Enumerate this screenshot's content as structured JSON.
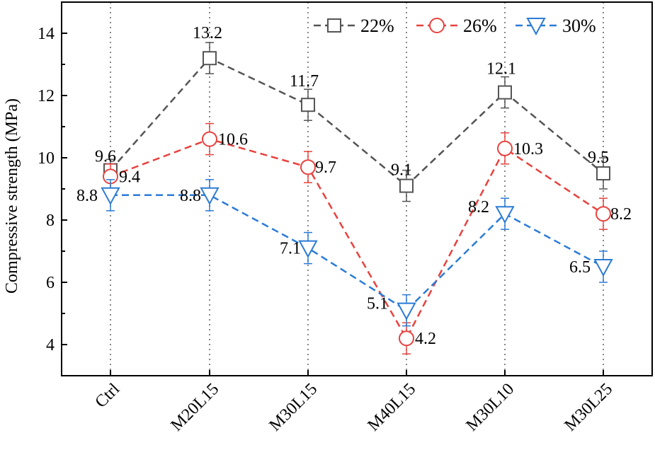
{
  "chart_data": {
    "type": "line",
    "categories": [
      "Ctrl",
      "M20L15",
      "M30L15",
      "M40L15",
      "M30L10",
      "M30L25"
    ],
    "ylabel": "Compressive strength (MPa)",
    "xlabel": "",
    "ylim": [
      3,
      15
    ],
    "yticks": [
      "4",
      "6",
      "8",
      "10",
      "12",
      "14"
    ],
    "grid": "vertical dotted lines at categories",
    "legend_position": "top-right",
    "series": [
      {
        "name": "22%",
        "color": "#555555",
        "marker": "square",
        "values": [
          9.6,
          13.2,
          11.7,
          9.1,
          12.1,
          9.5
        ],
        "labels": [
          "9.6",
          "13.2",
          "11.7",
          "9.1",
          "12.1",
          "9.5"
        ],
        "errors": [
          0.35,
          0.5,
          0.5,
          0.5,
          0.5,
          0.5
        ]
      },
      {
        "name": "26%",
        "color": "#e8423f",
        "marker": "circle",
        "values": [
          9.4,
          10.6,
          9.7,
          4.2,
          10.3,
          8.2
        ],
        "labels": [
          "9.4",
          "10.6",
          "9.7",
          "4.2",
          "10.3",
          "8.2"
        ],
        "errors": [
          0.4,
          0.5,
          0.5,
          0.5,
          0.5,
          0.5
        ]
      },
      {
        "name": "30%",
        "color": "#2b7bd6",
        "marker": "triangle-down",
        "values": [
          8.8,
          8.8,
          7.1,
          5.1,
          8.2,
          6.5
        ],
        "labels": [
          "8.8",
          "8.8",
          "7.1",
          "5.1",
          "8.2",
          "6.5"
        ],
        "errors": [
          0.5,
          0.5,
          0.5,
          0.5,
          0.5,
          0.5
        ]
      }
    ]
  }
}
